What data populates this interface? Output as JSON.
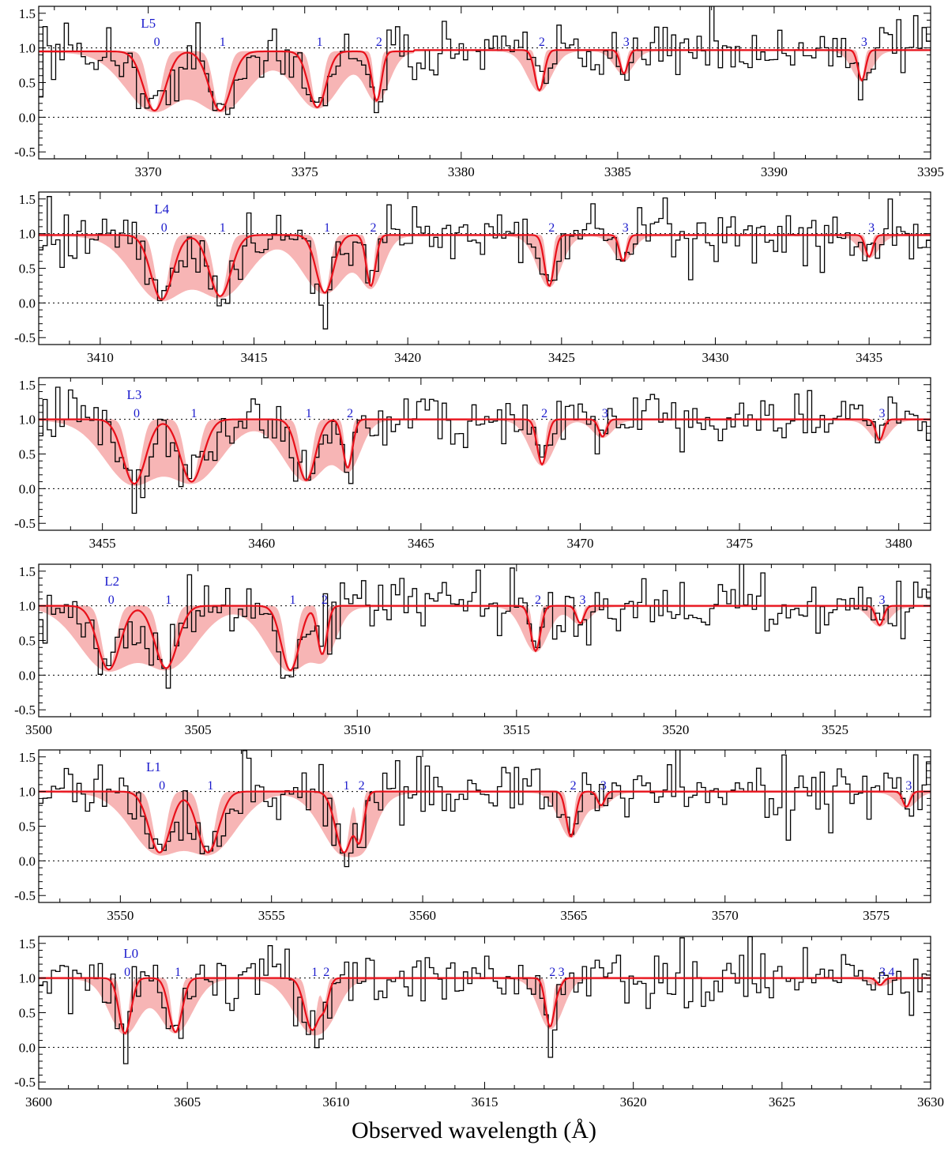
{
  "chart_data": {
    "type": "line",
    "xlabel": "Observed wavelength (Å)",
    "colors": {
      "data": "#000000",
      "model": "#e8101a",
      "band": "#f7b5b5",
      "labels": "#1a1acc"
    },
    "panels": [
      {
        "xlim": [
          3366.5,
          3395
        ],
        "ylim": [
          -0.6,
          1.6
        ],
        "xticks": [
          3370,
          3375,
          3380,
          3385,
          3390,
          3395
        ],
        "yticks": [
          -0.5,
          0.0,
          0.5,
          1.0,
          1.5
        ],
        "continuum": 0.95,
        "continuum_shift_at": 3378.5,
        "continuum_right": 0.97,
        "group_label": "L5",
        "group_label_x": 3370,
        "lines": [
          {
            "x": 3370.2,
            "depth": 0.9,
            "w": 0.35,
            "label": "0"
          },
          {
            "x": 3372.3,
            "depth": 0.9,
            "w": 0.35,
            "label": "1"
          },
          {
            "x": 3375.4,
            "depth": 0.85,
            "w": 0.28,
            "label": "1"
          },
          {
            "x": 3377.3,
            "depth": 0.75,
            "w": 0.15,
            "label": "2"
          },
          {
            "x": 3382.5,
            "depth": 0.6,
            "w": 0.15,
            "label": "2"
          },
          {
            "x": 3385.2,
            "depth": 0.35,
            "w": 0.12,
            "label": "3"
          },
          {
            "x": 3392.8,
            "depth": 0.45,
            "w": 0.12,
            "label": "3"
          }
        ]
      },
      {
        "xlim": [
          3408,
          3437
        ],
        "ylim": [
          -0.6,
          1.6
        ],
        "xticks": [
          3410,
          3415,
          3420,
          3425,
          3430,
          3435
        ],
        "yticks": [
          -0.5,
          0.0,
          0.5,
          1.0,
          1.5
        ],
        "continuum": 0.98,
        "group_label": "L4",
        "group_label_x": 3412,
        "lines": [
          {
            "x": 3412.0,
            "depth": 0.95,
            "w": 0.35,
            "label": "0"
          },
          {
            "x": 3413.9,
            "depth": 0.9,
            "w": 0.35,
            "label": "1"
          },
          {
            "x": 3417.3,
            "depth": 0.85,
            "w": 0.28,
            "label": "1"
          },
          {
            "x": 3418.8,
            "depth": 0.75,
            "w": 0.15,
            "label": "2"
          },
          {
            "x": 3424.6,
            "depth": 0.75,
            "w": 0.15,
            "label": "2"
          },
          {
            "x": 3427.0,
            "depth": 0.38,
            "w": 0.12,
            "label": "3"
          },
          {
            "x": 3435.0,
            "depth": 0.32,
            "w": 0.12,
            "label": "3"
          }
        ]
      },
      {
        "xlim": [
          3453,
          3481
        ],
        "ylim": [
          -0.6,
          1.6
        ],
        "xticks": [
          3455,
          3460,
          3465,
          3470,
          3475,
          3480
        ],
        "yticks": [
          -0.5,
          0.0,
          0.5,
          1.0,
          1.5
        ],
        "continuum": 1.0,
        "group_label": "L3",
        "group_label_x": 3456,
        "lines": [
          {
            "x": 3456.0,
            "depth": 0.93,
            "w": 0.35,
            "label": "0"
          },
          {
            "x": 3457.8,
            "depth": 0.9,
            "w": 0.35,
            "label": "1"
          },
          {
            "x": 3461.4,
            "depth": 0.88,
            "w": 0.28,
            "label": "1"
          },
          {
            "x": 3462.7,
            "depth": 0.7,
            "w": 0.15,
            "label": "2"
          },
          {
            "x": 3468.8,
            "depth": 0.65,
            "w": 0.15,
            "label": "2"
          },
          {
            "x": 3470.7,
            "depth": 0.25,
            "w": 0.12,
            "label": "3"
          },
          {
            "x": 3479.4,
            "depth": 0.3,
            "w": 0.12,
            "label": "3"
          }
        ]
      },
      {
        "xlim": [
          3500,
          3528
        ],
        "ylim": [
          -0.6,
          1.6
        ],
        "xticks": [
          3500,
          3505,
          3510,
          3515,
          3520,
          3525
        ],
        "yticks": [
          -0.5,
          0.0,
          0.5,
          1.0,
          1.5
        ],
        "continuum": 1.0,
        "group_label": "L2",
        "group_label_x": 3502.3,
        "lines": [
          {
            "x": 3502.2,
            "depth": 0.92,
            "w": 0.35,
            "label": "0"
          },
          {
            "x": 3504.0,
            "depth": 0.9,
            "w": 0.35,
            "label": "1"
          },
          {
            "x": 3507.9,
            "depth": 0.93,
            "w": 0.28,
            "label": "1"
          },
          {
            "x": 3508.9,
            "depth": 0.7,
            "w": 0.15,
            "label": "2"
          },
          {
            "x": 3515.6,
            "depth": 0.65,
            "w": 0.15,
            "label": "2"
          },
          {
            "x": 3517.0,
            "depth": 0.25,
            "w": 0.12,
            "label": "3"
          },
          {
            "x": 3526.4,
            "depth": 0.28,
            "w": 0.12,
            "label": "3"
          }
        ]
      },
      {
        "xlim": [
          3547.3,
          3576.8
        ],
        "ylim": [
          -0.6,
          1.6
        ],
        "xticks": [
          3550,
          3555,
          3560,
          3565,
          3570,
          3575
        ],
        "yticks": [
          -0.5,
          0.0,
          0.5,
          1.0,
          1.5
        ],
        "continuum": 1.0,
        "group_label": "L1",
        "group_label_x": 3551.1,
        "lines": [
          {
            "x": 3551.3,
            "depth": 0.88,
            "w": 0.35,
            "label": "0"
          },
          {
            "x": 3552.9,
            "depth": 0.88,
            "w": 0.35,
            "label": "1"
          },
          {
            "x": 3557.4,
            "depth": 0.88,
            "w": 0.28,
            "label": "1"
          },
          {
            "x": 3557.9,
            "depth": 0.7,
            "w": 0.15,
            "label": "2"
          },
          {
            "x": 3564.9,
            "depth": 0.65,
            "w": 0.15,
            "label": "2"
          },
          {
            "x": 3565.9,
            "depth": 0.2,
            "w": 0.12,
            "label": "3"
          },
          {
            "x": 3576.0,
            "depth": 0.22,
            "w": 0.12,
            "label": "3"
          }
        ]
      },
      {
        "xlim": [
          3600,
          3630
        ],
        "ylim": [
          -0.6,
          1.6
        ],
        "xticks": [
          3600,
          3605,
          3610,
          3615,
          3620,
          3625,
          3630
        ],
        "yticks": [
          -0.5,
          0.0,
          0.5,
          1.0,
          1.5
        ],
        "continuum": 1.0,
        "group_label": "L0",
        "group_label_x": 3603.1,
        "lines": [
          {
            "x": 3602.9,
            "depth": 0.8,
            "w": 0.2,
            "label": "0"
          },
          {
            "x": 3604.6,
            "depth": 0.78,
            "w": 0.22,
            "label": "1"
          },
          {
            "x": 3609.2,
            "depth": 0.75,
            "w": 0.25,
            "label": "1"
          },
          {
            "x": 3609.6,
            "depth": 0.35,
            "w": 0.15,
            "label": "2"
          },
          {
            "x": 3617.2,
            "depth": 0.7,
            "w": 0.15,
            "label": "2"
          },
          {
            "x": 3617.5,
            "depth": 0.1,
            "w": 0.12,
            "label": "3"
          },
          {
            "x": 3628.3,
            "depth": 0.1,
            "w": 0.12,
            "label": "3"
          },
          {
            "x": 3628.6,
            "depth": 0.0,
            "w": 0.1,
            "label": "4"
          }
        ]
      }
    ]
  }
}
